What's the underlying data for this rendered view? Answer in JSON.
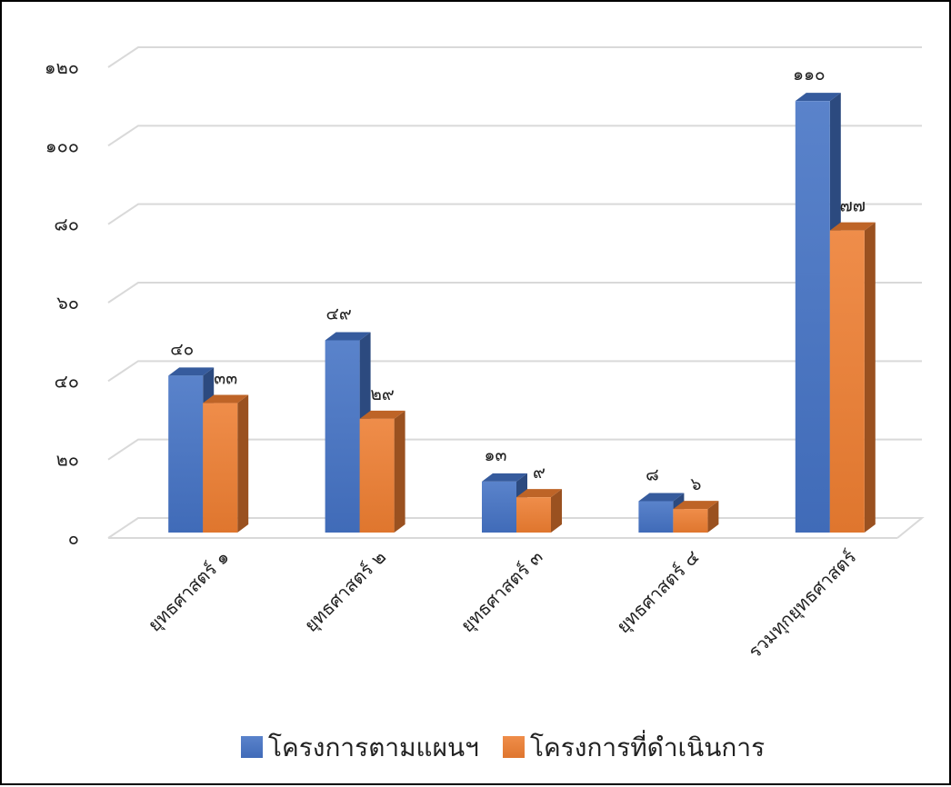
{
  "chart_data": {
    "type": "bar",
    "style": "3d-clustered-column",
    "title": "",
    "xlabel": "",
    "ylabel": "",
    "categories": [
      "ยุทธศาสตร์ ๑",
      "ยุทธศาสตร์ ๒",
      "ยุทธศาสตร์ ๓",
      "ยุทธศาสตร์ ๔",
      "รวมทุกยุทธศาสตร์"
    ],
    "series": [
      {
        "name": "โครงการตามแผนฯ",
        "values": [
          40,
          49,
          13,
          8,
          110
        ],
        "labels": [
          "๔๐",
          "๔๙",
          "๑๓",
          "๘",
          "๑๑๐"
        ],
        "color": "#4472C4"
      },
      {
        "name": "โครงการที่ดำเนินการ",
        "values": [
          33,
          29,
          9,
          6,
          77
        ],
        "labels": [
          "๓๓",
          "๒๙",
          "๙",
          "๖",
          "๗๗"
        ],
        "color": "#ED7D31"
      }
    ],
    "ylim": [
      0,
      120
    ],
    "yticks": [
      0,
      20,
      40,
      60,
      80,
      100,
      120
    ],
    "ytick_labels": [
      "๐",
      "๒๐",
      "๔๐",
      "๖๐",
      "๘๐",
      "๑๐๐",
      "๑๒๐"
    ],
    "grid": true,
    "legend_position": "bottom"
  }
}
